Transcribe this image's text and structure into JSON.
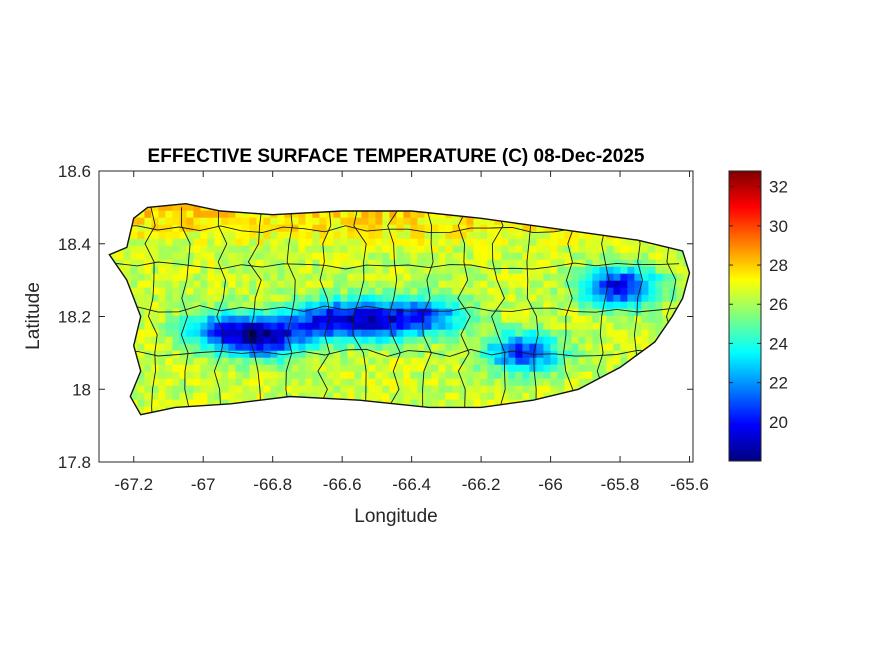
{
  "chart_data": {
    "type": "heatmap",
    "title": "EFFECTIVE SURFACE TEMPERATURE (C) 08-Dec-2025",
    "xlabel": "Longitude",
    "ylabel": "Latitude",
    "xlim": [
      -67.3,
      -65.59
    ],
    "ylim": [
      17.8,
      18.6
    ],
    "x_ticks": [
      -67.2,
      -67,
      -66.8,
      -66.6,
      -66.4,
      -66.2,
      -66,
      -65.8,
      -65.6
    ],
    "x_tick_labels": [
      "-67.2",
      "-67",
      "-66.8",
      "-66.6",
      "-66.4",
      "-66.2",
      "-66",
      "-65.8",
      "-65.6"
    ],
    "y_ticks": [
      17.8,
      18,
      18.2,
      18.4,
      18.6
    ],
    "y_tick_labels": [
      "17.8",
      "18",
      "18.2",
      "18.4",
      "18.6"
    ],
    "colorbar": {
      "colormap": "jet",
      "range": [
        18,
        32.8
      ],
      "ticks": [
        20,
        22,
        24,
        26,
        28,
        30,
        32
      ],
      "tick_labels": [
        "20",
        "22",
        "24",
        "26",
        "28",
        "30",
        "32"
      ]
    },
    "grid": false,
    "background_temperature_c": 26.5,
    "warm_north_coast_c": 28,
    "cold_spots": [
      {
        "lon": -66.82,
        "lat": 18.14,
        "temp_c": 19.5
      },
      {
        "lon": -66.65,
        "lat": 18.19,
        "temp_c": 20.5
      },
      {
        "lon": -66.5,
        "lat": 18.19,
        "temp_c": 20.5
      },
      {
        "lon": -66.35,
        "lat": 18.2,
        "temp_c": 21.5
      },
      {
        "lon": -66.08,
        "lat": 18.1,
        "temp_c": 20.5
      },
      {
        "lon": -65.8,
        "lat": 18.28,
        "temp_c": 19.5
      },
      {
        "lon": -66.95,
        "lat": 18.16,
        "temp_c": 21.5
      }
    ],
    "island_outline": [
      [
        -67.27,
        18.37
      ],
      [
        -67.22,
        18.39
      ],
      [
        -67.2,
        18.47
      ],
      [
        -67.16,
        18.5
      ],
      [
        -67.05,
        18.51
      ],
      [
        -66.95,
        18.49
      ],
      [
        -66.8,
        18.48
      ],
      [
        -66.6,
        18.49
      ],
      [
        -66.4,
        18.49
      ],
      [
        -66.2,
        18.47
      ],
      [
        -66.05,
        18.45
      ],
      [
        -65.9,
        18.43
      ],
      [
        -65.75,
        18.41
      ],
      [
        -65.62,
        18.38
      ],
      [
        -65.6,
        18.32
      ],
      [
        -65.62,
        18.25
      ],
      [
        -65.65,
        18.2
      ],
      [
        -65.7,
        18.13
      ],
      [
        -65.8,
        18.06
      ],
      [
        -65.92,
        18.0
      ],
      [
        -66.05,
        17.97
      ],
      [
        -66.2,
        17.95
      ],
      [
        -66.35,
        17.95
      ],
      [
        -66.55,
        17.97
      ],
      [
        -66.75,
        17.98
      ],
      [
        -66.92,
        17.96
      ],
      [
        -67.08,
        17.95
      ],
      [
        -67.18,
        17.93
      ],
      [
        -67.21,
        17.98
      ],
      [
        -67.18,
        18.05
      ],
      [
        -67.2,
        18.12
      ],
      [
        -67.18,
        18.2
      ],
      [
        -67.22,
        18.3
      ]
    ]
  }
}
